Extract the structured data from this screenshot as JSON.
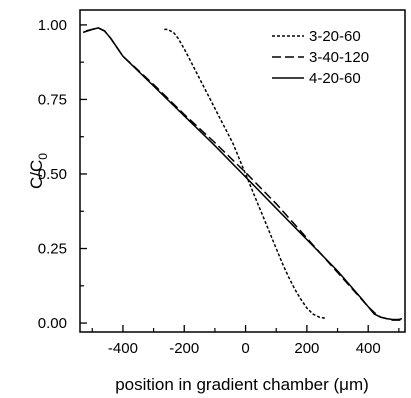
{
  "chart_data": {
    "type": "line",
    "title": "",
    "xlabel": "position in gradient chamber (μm)",
    "ylabel": "C/C",
    "ylabel_subscript": "0",
    "xlim": [
      -540,
      520
    ],
    "ylim": [
      -0.03,
      1.05
    ],
    "x_ticks": [
      -400,
      -200,
      0,
      200,
      400
    ],
    "x_tick_labels": [
      "-400",
      "-200",
      "0",
      "200",
      "400"
    ],
    "y_ticks": [
      0.0,
      0.25,
      0.5,
      0.75,
      1.0
    ],
    "y_tick_labels": [
      "0.00",
      "0.25",
      "0.50",
      "0.75",
      "1.00"
    ],
    "grid": false,
    "legend_position": "top-right",
    "colors": {
      "axis": "#000000",
      "series": "#000000"
    },
    "series": [
      {
        "name": "3-20-60",
        "line_style": "dotted",
        "x": [
          -265,
          -255,
          -245,
          -235,
          -220,
          -200,
          -180,
          -160,
          -140,
          -120,
          -100,
          -80,
          -60,
          -40,
          -20,
          0,
          20,
          40,
          60,
          80,
          100,
          120,
          140,
          160,
          180,
          200,
          220,
          240,
          255,
          265
        ],
        "y": [
          0.985,
          0.985,
          0.98,
          0.975,
          0.955,
          0.92,
          0.88,
          0.84,
          0.8,
          0.76,
          0.72,
          0.68,
          0.64,
          0.6,
          0.55,
          0.5,
          0.45,
          0.4,
          0.35,
          0.3,
          0.25,
          0.2,
          0.155,
          0.115,
          0.08,
          0.05,
          0.03,
          0.02,
          0.017,
          0.017
        ]
      },
      {
        "name": "3-40-120",
        "line_style": "dashed",
        "x": [
          -520,
          -500,
          -480,
          -460,
          -440,
          -400,
          -300,
          -200,
          -100,
          0,
          100,
          200,
          300,
          400,
          420,
          440,
          460,
          480,
          500,
          510
        ],
        "y": [
          0.98,
          0.985,
          0.99,
          0.98,
          0.955,
          0.895,
          0.8,
          0.7,
          0.605,
          0.505,
          0.4,
          0.285,
          0.17,
          0.055,
          0.035,
          0.02,
          0.015,
          0.01,
          0.01,
          0.01
        ]
      },
      {
        "name": "4-20-60",
        "line_style": "solid",
        "x": [
          -530,
          -500,
          -480,
          -460,
          -440,
          -400,
          -300,
          -200,
          -100,
          0,
          100,
          200,
          300,
          380,
          400,
          420,
          440,
          460,
          480,
          500,
          510
        ],
        "y": [
          0.975,
          0.985,
          0.99,
          0.98,
          0.955,
          0.895,
          0.795,
          0.695,
          0.595,
          0.49,
          0.385,
          0.28,
          0.175,
          0.08,
          0.055,
          0.03,
          0.02,
          0.015,
          0.012,
          0.012,
          0.015
        ]
      }
    ]
  }
}
